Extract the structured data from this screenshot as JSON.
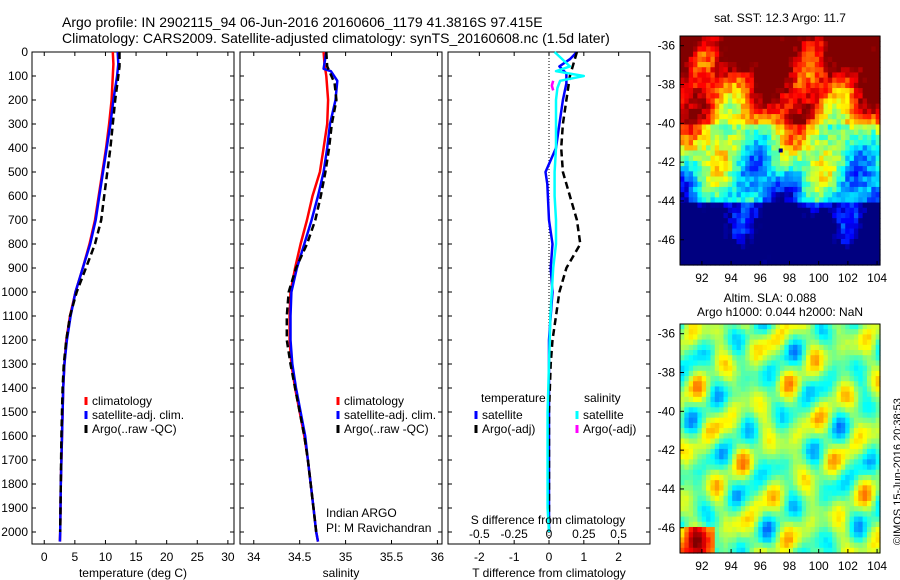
{
  "titles": {
    "line1": "Argo profile: IN 2902115_94 06-Jun-2016 20160606_1179 41.3816S 97.415E",
    "line2": "Climatology: CARS2009. Satellite-adjusted climatology: synTS_20160608.nc (1.5d later)"
  },
  "stamp": "©IMOS 15-Jun-2016 20:38:53",
  "chart_data": [
    {
      "type": "line",
      "id": "temperature",
      "xlabel": "temperature (deg C)",
      "xlim": [
        -2,
        31
      ],
      "xticks": [
        0,
        5,
        10,
        15,
        20,
        25,
        30
      ],
      "ylim": [
        2050,
        0
      ],
      "yticks": [
        0,
        100,
        200,
        300,
        400,
        500,
        600,
        700,
        800,
        900,
        1000,
        1100,
        1200,
        1300,
        1400,
        1500,
        1600,
        1700,
        1800,
        1900,
        2000
      ],
      "legend": [
        "climatology",
        "satellite-adj. clim.",
        "Argo(..raw -QC)"
      ],
      "series": [
        {
          "name": "climatology",
          "color": "#ff0000",
          "style": "solid",
          "points": [
            [
              11.2,
              0
            ],
            [
              11.3,
              50
            ],
            [
              11.2,
              100
            ],
            [
              11.0,
              200
            ],
            [
              10.6,
              300
            ],
            [
              10.1,
              400
            ],
            [
              9.5,
              500
            ],
            [
              8.9,
              600
            ],
            [
              8.3,
              700
            ],
            [
              7.4,
              800
            ],
            [
              6.3,
              900
            ],
            [
              5.1,
              1000
            ],
            [
              4.2,
              1100
            ],
            [
              3.6,
              1200
            ],
            [
              3.3,
              1300
            ],
            [
              3.1,
              1400
            ],
            [
              3.0,
              1500
            ],
            [
              2.9,
              1600
            ],
            [
              2.8,
              1700
            ],
            [
              2.7,
              1800
            ],
            [
              2.65,
              1900
            ],
            [
              2.6,
              2000
            ],
            [
              2.55,
              2040
            ]
          ]
        },
        {
          "name": "satellite-adj. clim.",
          "color": "#0000ff",
          "style": "solid",
          "points": [
            [
              12.0,
              0
            ],
            [
              12.1,
              50
            ],
            [
              11.9,
              100
            ],
            [
              11.3,
              200
            ],
            [
              10.8,
              300
            ],
            [
              10.2,
              400
            ],
            [
              9.6,
              500
            ],
            [
              9.0,
              600
            ],
            [
              8.4,
              700
            ],
            [
              7.5,
              800
            ],
            [
              6.3,
              900
            ],
            [
              5.1,
              1000
            ],
            [
              4.3,
              1100
            ],
            [
              3.7,
              1200
            ],
            [
              3.3,
              1300
            ],
            [
              3.1,
              1400
            ],
            [
              3.0,
              1500
            ],
            [
              2.9,
              1600
            ],
            [
              2.8,
              1700
            ],
            [
              2.7,
              1800
            ],
            [
              2.65,
              1900
            ],
            [
              2.6,
              2000
            ],
            [
              2.55,
              2040
            ]
          ]
        },
        {
          "name": "Argo(..raw -QC)",
          "color": "#000000",
          "style": "dashed",
          "points": [
            [
              12.3,
              0
            ],
            [
              12.3,
              60
            ],
            [
              12.0,
              120
            ],
            [
              11.6,
              200
            ],
            [
              11.2,
              300
            ],
            [
              10.8,
              400
            ],
            [
              10.3,
              500
            ],
            [
              9.8,
              600
            ],
            [
              9.3,
              700
            ],
            [
              8.3,
              800
            ],
            [
              6.8,
              900
            ],
            [
              5.3,
              1000
            ],
            [
              4.2,
              1100
            ],
            [
              3.6,
              1200
            ],
            [
              3.2,
              1300
            ],
            [
              3.0,
              1400
            ],
            [
              2.9,
              1500
            ],
            [
              2.8,
              1600
            ],
            [
              2.75,
              1700
            ],
            [
              2.7,
              1800
            ],
            [
              2.65,
              1900
            ],
            [
              2.6,
              2000
            ]
          ]
        }
      ]
    },
    {
      "type": "line",
      "id": "salinity",
      "xlabel": "salinity",
      "xlim": [
        33.85,
        36.05
      ],
      "xticks": [
        34,
        34.5,
        35,
        35.5,
        36
      ],
      "xticklabels": [
        "34",
        "34.5",
        "35",
        "35.5",
        "36"
      ],
      "ylim": [
        2050,
        0
      ],
      "legend": [
        "climatology",
        "satellite-adj. clim.",
        "Argo(..raw -QC)"
      ],
      "annotation": [
        "Indian ARGO",
        "PI: M Ravichandran"
      ],
      "series": [
        {
          "name": "climatology",
          "color": "#ff0000",
          "style": "solid",
          "points": [
            [
              34.76,
              0
            ],
            [
              34.77,
              50
            ],
            [
              34.79,
              100
            ],
            [
              34.81,
              200
            ],
            [
              34.8,
              300
            ],
            [
              34.76,
              400
            ],
            [
              34.72,
              500
            ],
            [
              34.64,
              600
            ],
            [
              34.58,
              700
            ],
            [
              34.51,
              800
            ],
            [
              34.45,
              900
            ],
            [
              34.4,
              1000
            ],
            [
              34.39,
              1100
            ],
            [
              34.39,
              1200
            ],
            [
              34.41,
              1300
            ],
            [
              34.45,
              1400
            ],
            [
              34.5,
              1500
            ],
            [
              34.55,
              1600
            ],
            [
              34.59,
              1700
            ],
            [
              34.62,
              1800
            ],
            [
              34.65,
              1900
            ],
            [
              34.68,
              2000
            ],
            [
              34.7,
              2040
            ]
          ]
        },
        {
          "name": "satellite-adj. clim.",
          "color": "#0000ff",
          "style": "solid",
          "points": [
            [
              34.79,
              0
            ],
            [
              34.76,
              70
            ],
            [
              34.84,
              80
            ],
            [
              34.91,
              120
            ],
            [
              34.89,
              200
            ],
            [
              34.83,
              300
            ],
            [
              34.8,
              400
            ],
            [
              34.76,
              500
            ],
            [
              34.7,
              600
            ],
            [
              34.63,
              700
            ],
            [
              34.55,
              800
            ],
            [
              34.47,
              900
            ],
            [
              34.41,
              1000
            ],
            [
              34.4,
              1100
            ],
            [
              34.4,
              1200
            ],
            [
              34.42,
              1300
            ],
            [
              34.46,
              1400
            ],
            [
              34.51,
              1500
            ],
            [
              34.56,
              1600
            ],
            [
              34.59,
              1700
            ],
            [
              34.62,
              1800
            ],
            [
              34.65,
              1900
            ],
            [
              34.68,
              2000
            ],
            [
              34.7,
              2040
            ]
          ]
        },
        {
          "name": "Argo(..raw -QC)",
          "color": "#000000",
          "style": "dashed",
          "points": [
            [
              34.79,
              0
            ],
            [
              34.8,
              60
            ],
            [
              34.88,
              130
            ],
            [
              34.9,
              200
            ],
            [
              34.85,
              300
            ],
            [
              34.82,
              400
            ],
            [
              34.78,
              500
            ],
            [
              34.73,
              600
            ],
            [
              34.67,
              700
            ],
            [
              34.58,
              800
            ],
            [
              34.46,
              900
            ],
            [
              34.38,
              1000
            ],
            [
              34.36,
              1100
            ],
            [
              34.36,
              1200
            ],
            [
              34.4,
              1300
            ],
            [
              34.45,
              1400
            ],
            [
              34.5,
              1500
            ],
            [
              34.55,
              1600
            ],
            [
              34.59,
              1700
            ],
            [
              34.62,
              1800
            ],
            [
              34.65,
              1900
            ],
            [
              34.68,
              2000
            ]
          ]
        }
      ]
    },
    {
      "type": "line",
      "id": "difference",
      "xlabel": "T difference from climatology",
      "xlabel_top": "S difference from climatology",
      "xlim": [
        -2.9,
        2.9
      ],
      "xticks": [
        -2,
        -1,
        0,
        1,
        2
      ],
      "top_ticks": [
        -0.5,
        -0.25,
        0,
        0.25,
        0.5
      ],
      "top_ticklabels": [
        "-0.5",
        "-0.25",
        "0",
        "0.25",
        "0.5"
      ],
      "top_scale": 4,
      "ylim": [
        2050,
        0
      ],
      "legend_temperature_title": "temperature",
      "legend_salinity_title": "salinity",
      "legend_temperature": [
        "satellite",
        "Argo(-adj)"
      ],
      "legend_salinity": [
        "satellite",
        "Argo(-adj)"
      ],
      "series": [
        {
          "name": "satellite",
          "group": "temperature",
          "color": "#0000ff",
          "style": "solid",
          "points": [
            [
              0.8,
              0
            ],
            [
              0.6,
              30
            ],
            [
              0.3,
              60
            ],
            [
              0.5,
              90
            ],
            [
              0.5,
              130
            ],
            [
              0.4,
              200
            ],
            [
              0.3,
              300
            ],
            [
              0.2,
              400
            ],
            [
              -0.1,
              500
            ],
            [
              -0.05,
              550
            ],
            [
              0.0,
              700
            ],
            [
              0.1,
              800
            ],
            [
              0.05,
              900
            ],
            [
              0.1,
              1000
            ],
            [
              0.05,
              1100
            ],
            [
              0.0,
              1200
            ],
            [
              0.0,
              1300
            ],
            [
              0.0,
              1500
            ],
            [
              0.0,
              1700
            ],
            [
              0.0,
              1900
            ],
            [
              0.0,
              2000
            ]
          ]
        },
        {
          "name": "Argo(-adj)",
          "group": "temperature",
          "color": "#000000",
          "style": "dashed",
          "points": [
            [
              0.8,
              0
            ],
            [
              0.6,
              100
            ],
            [
              0.5,
              200
            ],
            [
              0.4,
              300
            ],
            [
              0.35,
              400
            ],
            [
              0.4,
              500
            ],
            [
              0.6,
              600
            ],
            [
              0.8,
              700
            ],
            [
              0.9,
              800
            ],
            [
              0.5,
              900
            ],
            [
              0.3,
              1000
            ],
            [
              0.2,
              1100
            ],
            [
              0.1,
              1200
            ],
            [
              0.05,
              1300
            ],
            [
              0.0,
              1500
            ],
            [
              0.0,
              1700
            ],
            [
              0.0,
              1900
            ],
            [
              0.0,
              2000
            ]
          ]
        },
        {
          "name": "satellite",
          "group": "salinity",
          "color": "#00ffff",
          "style": "solid",
          "points": [
            [
              0.04,
              0
            ],
            [
              0.15,
              60
            ],
            [
              0.05,
              80
            ],
            [
              0.25,
              100
            ],
            [
              0.08,
              120
            ],
            [
              0.06,
              150
            ],
            [
              0.05,
              200
            ],
            [
              0.05,
              300
            ],
            [
              0.05,
              400
            ],
            [
              0.04,
              500
            ],
            [
              0.04,
              600
            ],
            [
              0.05,
              700
            ],
            [
              0.05,
              800
            ],
            [
              0.03,
              900
            ],
            [
              0.02,
              1000
            ],
            [
              0.01,
              1100
            ],
            [
              0.0,
              1300
            ],
            [
              -0.01,
              1500
            ],
            [
              -0.01,
              1700
            ],
            [
              -0.01,
              1900
            ],
            [
              0.0,
              2000
            ]
          ]
        },
        {
          "name": "Argo(-adj)",
          "group": "salinity",
          "color": "#ff00ff",
          "style": "solid",
          "points": [
            [
              0.03,
              120
            ],
            [
              0.02,
              140
            ],
            [
              0.03,
              160
            ]
          ]
        }
      ]
    },
    {
      "type": "heatmap",
      "id": "sst_map",
      "title": "sat. SST: 12.3 Argo: 11.7",
      "xlim": [
        90.5,
        104.2
      ],
      "ylim": [
        -47.3,
        -35.5
      ],
      "xticks": [
        92,
        94,
        96,
        98,
        100,
        102,
        104
      ],
      "yticks": [
        -36,
        -38,
        -40,
        -42,
        -44,
        -46
      ],
      "colormap": "jet",
      "clim": [
        6,
        16
      ],
      "marker": [
        97.4,
        -41.4
      ]
    },
    {
      "type": "heatmap",
      "id": "sla_map",
      "title": "Altim. SLA: 0.088",
      "subtitle": "Argo h1000: 0.044 h2000: NaN",
      "xlim": [
        90.5,
        104.2
      ],
      "ylim": [
        -47.3,
        -35.5
      ],
      "xticks": [
        92,
        94,
        96,
        98,
        100,
        102,
        104
      ],
      "yticks": [
        -36,
        -38,
        -40,
        -42,
        -44,
        -46
      ],
      "colormap": "jet",
      "clim": [
        -0.5,
        0.5
      ]
    }
  ]
}
